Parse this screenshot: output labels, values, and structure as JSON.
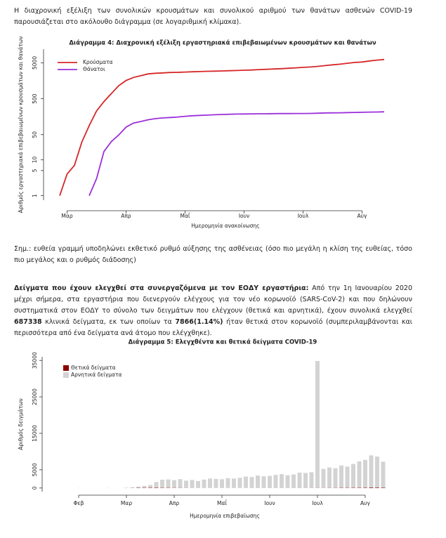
{
  "intro": "Η διαχρονική εξέλιξη των συνολικών κρουσμάτων και συνολικού αριθμού των θανάτων ασθενών COVID-19 παρουσιάζεται στο ακόλουθο διάγραμμα (σε λογαριθμική κλίμακα).",
  "note": "Σημ.: ευθεία γραμμή υποδηλώνει εκθετικό ρυθμό αύξησης της ασθένειας (όσο πιο μεγάλη η κλίση της ευθείας, τόσο πιο μεγάλος και ο ρυθμός διάδοσης)",
  "paragraph": {
    "runs": [
      {
        "text": "Δείγματα που έχουν ελεγχθεί στα συνεργαζόμενα με τον ΕΟΔΥ εργαστήρια:",
        "bold": true
      },
      {
        "text": " Από την 1η Ιανουαρίου 2020 μέχρι σήμερα, στα εργαστήρια που διενεργούν ελέγχους για τον νέο κορωνοϊό (SARS-CoV-2) και που δηλώνουν συστηματικά στον ΕΟΔΥ το σύνολο των δειγμάτων που ελέγχουν (θετικά και αρνητικά), έχουν συνολικά ελεγχθεί ",
        "bold": false
      },
      {
        "text": "687338",
        "bold": true
      },
      {
        "text": " κλινικά δείγματα, εκ των οποίων τα ",
        "bold": false
      },
      {
        "text": "7866(1.14%)",
        "bold": true
      },
      {
        "text": " ήταν θετικά στον κορωνοϊό (συμπεριλαμβάνονται και περισσότερα από ένα δείγματα ανά άτομο που ελέγχθηκε).",
        "bold": false
      }
    ]
  },
  "chart_data": [
    {
      "type": "line",
      "title": "Διάγραμμα 4: Διαχρονική εξέλιξη εργαστηριακά επιβεβαιωμένων κρουσμάτων και θανάτων",
      "x_label": "Ημερομηνία ανακοίνωσης",
      "y_label": "Αριθμός εργαστηριακά επιβεβαιωμένων κρουσμάτων και θανάτων",
      "log_y": true,
      "grid": false,
      "legend": "top-left",
      "categories": [
        null,
        "Μαρ",
        null,
        null,
        null,
        null,
        null,
        null,
        null,
        "Απρ",
        null,
        null,
        null,
        null,
        null,
        null,
        null,
        "Μαΐ",
        null,
        null,
        null,
        null,
        null,
        null,
        null,
        "Ιουν",
        null,
        null,
        null,
        null,
        null,
        null,
        null,
        "Ιουλ",
        null,
        null,
        null,
        null,
        null,
        null,
        null,
        "Αυγ",
        null,
        null,
        null
      ],
      "ylim": [
        0.75,
        12000
      ],
      "yticks": [
        1,
        5,
        10,
        50,
        500,
        5000
      ],
      "series": [
        {
          "name": "Κρούσματα",
          "color": "#d62728",
          "values": [
            1,
            4,
            7,
            31,
            89,
            228,
            418,
            695,
            1156,
            1613,
            1955,
            2192,
            2463,
            2566,
            2620,
            2691,
            2716,
            2770,
            2819,
            2853,
            2909,
            2937,
            2967,
            3008,
            3058,
            3112,
            3148,
            3237,
            3302,
            3376,
            3432,
            3519,
            3626,
            3732,
            3826,
            3983,
            4193,
            4401,
            4587,
            4855,
            5123,
            5270,
            5623,
            5942,
            6177
          ]
        },
        {
          "name": "Θάνατοι",
          "color": "#9b30d9",
          "values": [
            null,
            null,
            null,
            null,
            1,
            3,
            17,
            32,
            49,
            81,
            105,
            116,
            130,
            140,
            146,
            150,
            155,
            162,
            168,
            172,
            175,
            179,
            182,
            185,
            187,
            188,
            190,
            191,
            191,
            192,
            193,
            193,
            194,
            194,
            195,
            198,
            201,
            202,
            203,
            206,
            208,
            210,
            212,
            213,
            216
          ]
        }
      ]
    },
    {
      "type": "bar",
      "stacked": true,
      "title": "Διάγραμμα 5: Ελεγχθέντα και θετικά δείγματα COVID-19",
      "x_label": "Ημερομηνία επιβεβαίωσης",
      "y_label": "Αριθμός δειγμάτων",
      "log_y": false,
      "grid": false,
      "legend": "top-left",
      "categories": [
        "Φεβ",
        null,
        null,
        null,
        null,
        null,
        null,
        null,
        "Μαρ",
        null,
        null,
        null,
        null,
        null,
        null,
        null,
        "Απρ",
        null,
        null,
        null,
        null,
        null,
        null,
        null,
        "Μαΐ",
        null,
        null,
        null,
        null,
        null,
        null,
        null,
        "Ιουν",
        null,
        null,
        null,
        null,
        null,
        null,
        null,
        "Ιουλ",
        null,
        null,
        null,
        null,
        null,
        null,
        null,
        "Αυγ",
        null,
        null,
        null
      ],
      "ylim": [
        -1000,
        36000
      ],
      "yticks": [
        0,
        5000,
        15000,
        25000,
        35000
      ],
      "series": [
        {
          "name": "Θετικά δείγματα",
          "color": "#8b0000",
          "values": [
            0,
            0,
            0,
            0,
            0,
            0,
            0,
            0,
            10,
            30,
            60,
            90,
            110,
            120,
            80,
            60,
            50,
            40,
            20,
            15,
            10,
            10,
            8,
            5,
            5,
            5,
            6,
            5,
            10,
            10,
            12,
            8,
            15,
            12,
            10,
            15,
            20,
            25,
            20,
            25,
            35,
            30,
            40,
            45,
            60,
            80,
            100,
            110,
            120,
            150,
            140,
            130
          ]
        },
        {
          "name": "Αρνητικά δείγματα",
          "color": "#d3d3d3",
          "values": [
            30,
            0,
            0,
            0,
            0,
            40,
            0,
            0,
            100,
            200,
            300,
            500,
            700,
            1500,
            2200,
            2300,
            2100,
            2400,
            2000,
            2200,
            1900,
            2300,
            2600,
            2500,
            2400,
            2700,
            2600,
            2800,
            3100,
            3000,
            3400,
            3200,
            3300,
            3600,
            3800,
            3500,
            3700,
            4200,
            4100,
            4300,
            34800,
            5200,
            5600,
            5400,
            6100,
            5800,
            6500,
            7200,
            7600,
            8800,
            8500,
            7100
          ]
        }
      ]
    }
  ]
}
